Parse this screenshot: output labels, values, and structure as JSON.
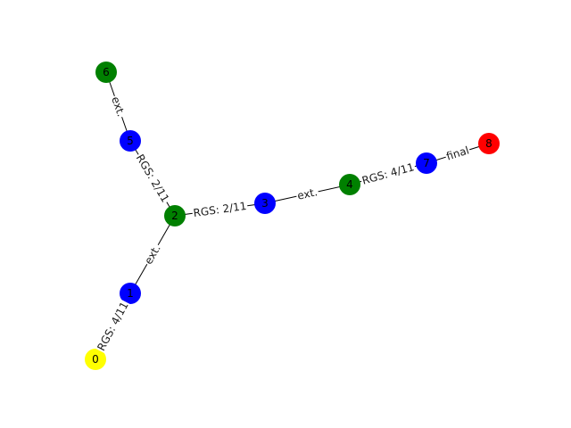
{
  "graph": {
    "nodes": [
      {
        "id": "0",
        "label": "0",
        "color": "#ffff00"
      },
      {
        "id": "1",
        "label": "1",
        "color": "#0000ff"
      },
      {
        "id": "2",
        "label": "2",
        "color": "#008000"
      },
      {
        "id": "3",
        "label": "3",
        "color": "#0000ff"
      },
      {
        "id": "4",
        "label": "4",
        "color": "#008000"
      },
      {
        "id": "5",
        "label": "5",
        "color": "#0000ff"
      },
      {
        "id": "6",
        "label": "6",
        "color": "#008000"
      },
      {
        "id": "7",
        "label": "7",
        "color": "#0000ff"
      },
      {
        "id": "8",
        "label": "8",
        "color": "#ff0000"
      }
    ],
    "edges": [
      {
        "source": "0",
        "target": "1",
        "label": "RGS: 4/11"
      },
      {
        "source": "1",
        "target": "2",
        "label": "ext."
      },
      {
        "source": "2",
        "target": "3",
        "label": "RGS: 2/11"
      },
      {
        "source": "2",
        "target": "5",
        "label": "RGS: 2/11"
      },
      {
        "source": "5",
        "target": "6",
        "label": "ext."
      },
      {
        "source": "3",
        "target": "4",
        "label": "ext."
      },
      {
        "source": "4",
        "target": "7",
        "label": "RGS: 4/11"
      },
      {
        "source": "7",
        "target": "8",
        "label": "final"
      }
    ]
  }
}
